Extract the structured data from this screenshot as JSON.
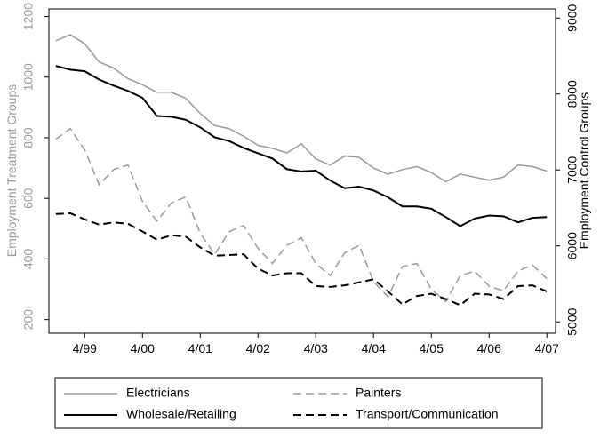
{
  "chart_data": {
    "type": "line",
    "y_label": "Employment Treatment Groups",
    "y2_label": "Employment Control Groups",
    "x": [
      1998.75,
      1999,
      1999.25,
      1999.5,
      1999.75,
      2000,
      2000.25,
      2000.5,
      2000.75,
      2001,
      2001.25,
      2001.5,
      2001.75,
      2002,
      2002.25,
      2002.5,
      2002.75,
      2003,
      2003.25,
      2003.5,
      2003.75,
      2004,
      2004.25,
      2004.5,
      2004.75,
      2005,
      2005.25,
      2005.5,
      2005.75,
      2006,
      2006.25,
      2006.5,
      2006.75,
      2007,
      2007.25
    ],
    "xlim": [
      1998.63,
      2007.4
    ],
    "xticks": [
      {
        "value": 1999.25,
        "label": "4/99"
      },
      {
        "value": 2000.25,
        "label": "4/00"
      },
      {
        "value": 2001.25,
        "label": "4/01"
      },
      {
        "value": 2002.25,
        "label": "4/02"
      },
      {
        "value": 2003.25,
        "label": "4/03"
      },
      {
        "value": 2004.25,
        "label": "4/04"
      },
      {
        "value": 2005.25,
        "label": "4/05"
      },
      {
        "value": 2006.25,
        "label": "4/06"
      },
      {
        "value": 2007.25,
        "label": "4/07"
      }
    ],
    "ylim": [
      155,
      1225
    ],
    "yticks": [
      200,
      400,
      600,
      800,
      1000,
      1200
    ],
    "y2lim": [
      4850,
      9120
    ],
    "y2ticks": [
      5000,
      6000,
      7000,
      8000,
      9000
    ],
    "series": [
      {
        "name": "Electricians",
        "color": "#999999",
        "dash": false,
        "values": [
          1120,
          1140,
          1110,
          1050,
          1030,
          995,
          975,
          950,
          950,
          930,
          880,
          840,
          830,
          805,
          775,
          765,
          750,
          780,
          730,
          710,
          740,
          735,
          700,
          680,
          695,
          705,
          685,
          655,
          680,
          670,
          660,
          670,
          710,
          705,
          690
        ]
      },
      {
        "name": "Painters",
        "color": "#999999",
        "dash": true,
        "values": [
          795,
          830,
          760,
          645,
          695,
          710,
          590,
          525,
          585,
          605,
          485,
          415,
          490,
          510,
          435,
          385,
          445,
          470,
          385,
          345,
          420,
          445,
          325,
          275,
          375,
          385,
          300,
          260,
          345,
          360,
          310,
          295,
          360,
          380,
          335
        ]
      },
      {
        "name": "Wholesale/Retailing",
        "color": "#000000",
        "dash": false,
        "axis": "y2",
        "values": [
          8370,
          8320,
          8300,
          8190,
          8110,
          8040,
          7950,
          7710,
          7700,
          7660,
          7560,
          7430,
          7380,
          7290,
          7220,
          7150,
          7010,
          6980,
          6990,
          6860,
          6760,
          6780,
          6730,
          6640,
          6520,
          6520,
          6490,
          6380,
          6260,
          6360,
          6400,
          6390,
          6310,
          6370,
          6380
        ]
      },
      {
        "name": "Transport/Communication",
        "color": "#000000",
        "dash": true,
        "axis": "y2",
        "values": [
          6420,
          6430,
          6350,
          6280,
          6310,
          6290,
          6190,
          6080,
          6140,
          6120,
          5980,
          5870,
          5880,
          5890,
          5700,
          5610,
          5640,
          5640,
          5470,
          5460,
          5480,
          5520,
          5560,
          5400,
          5230,
          5340,
          5370,
          5300,
          5220,
          5370,
          5360,
          5300,
          5470,
          5480,
          5400
        ]
      }
    ]
  }
}
